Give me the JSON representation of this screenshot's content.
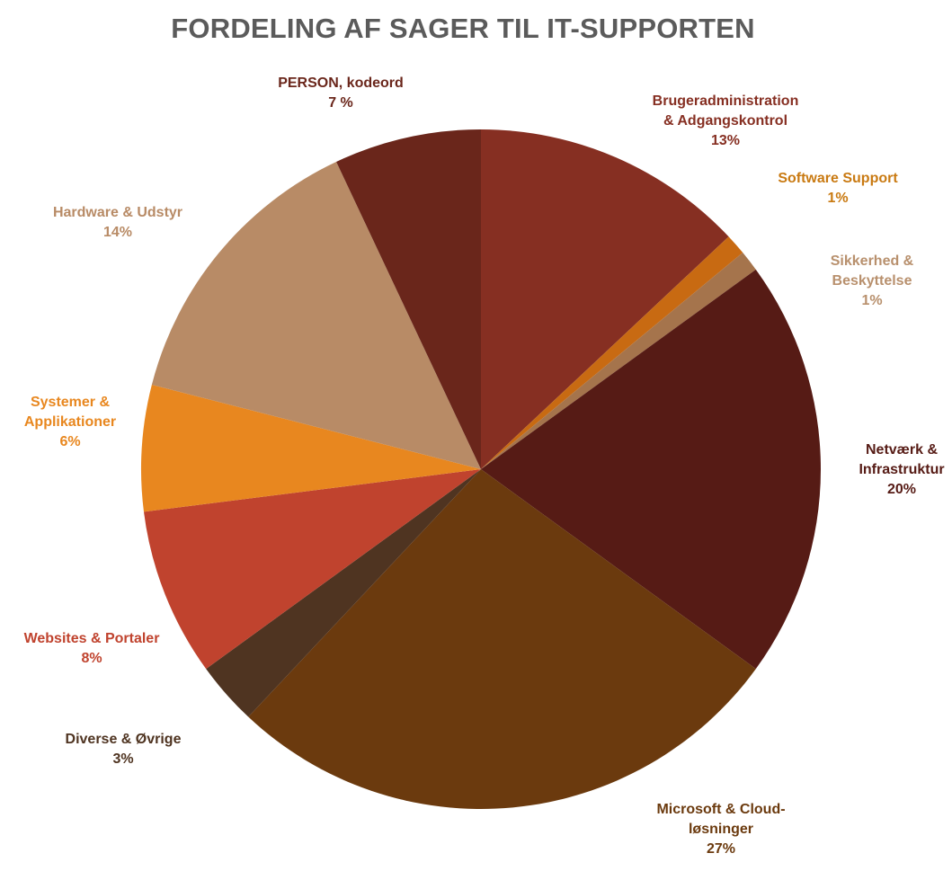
{
  "chart_data": {
    "type": "pie",
    "title": "FORDELING AF SAGER TIL IT-SUPPORTEN",
    "slices": [
      {
        "lines": [
          "Brugeradministration",
          "& Adgangskontrol"
        ],
        "value_label": "13%",
        "value": 13,
        "color": "#862f22",
        "label_color": "#862f22"
      },
      {
        "lines": [
          "Software Support"
        ],
        "value_label": "1%",
        "value": 1,
        "color": "#c86a12",
        "label_color": "#c97a12"
      },
      {
        "lines": [
          "Sikkerhed &",
          "Beskyttelse"
        ],
        "value_label": "1%",
        "value": 1,
        "color": "#a5744c",
        "label_color": "#b8906d"
      },
      {
        "lines": [
          "Netværk &",
          "Infrastruktur"
        ],
        "value_label": "20%",
        "value": 20,
        "color": "#561b15",
        "label_color": "#561b15"
      },
      {
        "lines": [
          "Microsoft & Cloud-",
          "løsninger"
        ],
        "value_label": "27%",
        "value": 27,
        "color": "#6b3a0e",
        "label_color": "#6b3a0e"
      },
      {
        "lines": [
          "Diverse & Øvrige"
        ],
        "value_label": "3%",
        "value": 3,
        "color": "#4f3421",
        "label_color": "#4f3421"
      },
      {
        "lines": [
          "Websites & Portaler"
        ],
        "value_label": "8%",
        "value": 8,
        "color": "#c0432e",
        "label_color": "#c0432e"
      },
      {
        "lines": [
          "Systemer &",
          "Applikationer"
        ],
        "value_label": "6%",
        "value": 6,
        "color": "#e8871f",
        "label_color": "#e8871f"
      },
      {
        "lines": [
          "Hardware & Udstyr"
        ],
        "value_label": "14%",
        "value": 14,
        "color": "#b88b66",
        "label_color": "#b88b66"
      },
      {
        "lines": [
          "PERSON, kodeord"
        ],
        "value_label": "7 %",
        "value": 7,
        "color": "#6a261b",
        "label_color": "#6a261b"
      }
    ]
  }
}
